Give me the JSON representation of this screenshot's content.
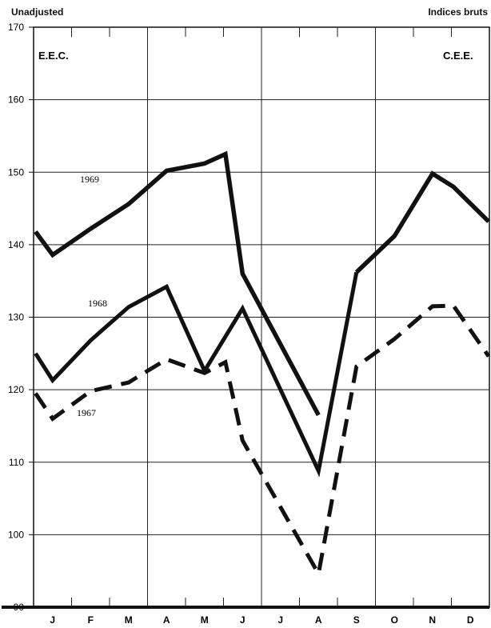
{
  "header": {
    "left_note": "Unadjusted",
    "right_note": "Indices bruts",
    "left_abbr": "E.E.C.",
    "right_abbr": "C.E.E."
  },
  "chart_data": {
    "type": "line",
    "title": "",
    "xlabel": "",
    "ylabel": "",
    "categories": [
      "J",
      "F",
      "M",
      "A",
      "M",
      "J",
      "J",
      "A",
      "S",
      "O",
      "N",
      "D"
    ],
    "ylim": [
      90,
      170
    ],
    "yticks": [
      90,
      100,
      110,
      120,
      130,
      140,
      150,
      160,
      170
    ],
    "grid": true,
    "series": [
      {
        "name": "1969",
        "style": "solid-heavy",
        "color": "#111111",
        "points": [
          {
            "x": "J",
            "y": 141.8
          },
          {
            "x": "J",
            "y": 138.6
          },
          {
            "x": "F",
            "y": 142.2
          },
          {
            "x": "M",
            "y": 145.6
          },
          {
            "x": "A",
            "y": 150.2
          },
          {
            "x": "M",
            "y": 151.2
          },
          {
            "x": "J",
            "y": 152.5
          },
          {
            "x": "J",
            "y": 136.0
          },
          {
            "x": "A",
            "y": 116.5
          }
        ]
      },
      {
        "name": "",
        "style": "solid-heavy",
        "color": "#111111",
        "points": [
          {
            "x": "S",
            "y": 136.2
          },
          {
            "x": "O",
            "y": 141.2
          },
          {
            "x": "N",
            "y": 149.8
          },
          {
            "x": "D",
            "y": 148.0
          },
          {
            "x": "D",
            "y": 143.2
          }
        ]
      },
      {
        "name": "1968",
        "style": "solid",
        "color": "#111111",
        "points": [
          {
            "x": "J",
            "y": 125.0
          },
          {
            "x": "J",
            "y": 121.3
          },
          {
            "x": "F",
            "y": 126.8
          },
          {
            "x": "M",
            "y": 131.4
          },
          {
            "x": "A",
            "y": 134.2
          },
          {
            "x": "M",
            "y": 122.6
          },
          {
            "x": "J",
            "y": 131.2
          },
          {
            "x": "A",
            "y": 108.8
          },
          {
            "x": "S",
            "y": 136.2
          }
        ]
      },
      {
        "name": "1967",
        "style": "dashed",
        "color": "#111111",
        "points": [
          {
            "x": "J",
            "y": 119.5
          },
          {
            "x": "J",
            "y": 116.0
          },
          {
            "x": "F",
            "y": 119.8
          },
          {
            "x": "M",
            "y": 121.0
          },
          {
            "x": "A",
            "y": 124.2
          },
          {
            "x": "M",
            "y": 122.3
          },
          {
            "x": "J",
            "y": 123.8
          },
          {
            "x": "J",
            "y": 113.0
          },
          {
            "x": "A",
            "y": 94.6
          },
          {
            "x": "S",
            "y": 123.2
          },
          {
            "x": "O",
            "y": 127.0
          },
          {
            "x": "N",
            "y": 131.5
          },
          {
            "x": "D",
            "y": 131.6
          },
          {
            "x": "D",
            "y": 124.6
          }
        ]
      }
    ]
  }
}
